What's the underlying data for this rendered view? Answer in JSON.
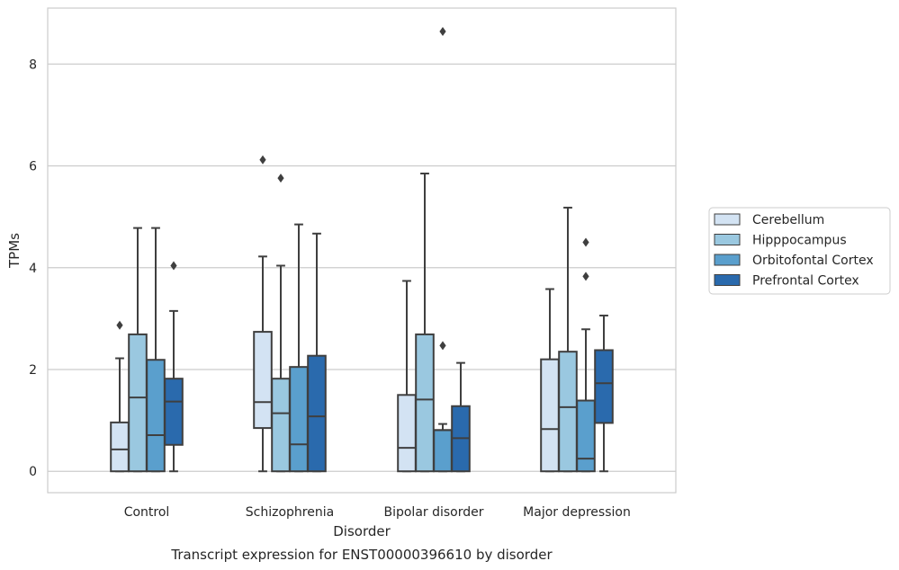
{
  "chart_data": {
    "type": "box",
    "title": "Transcript expression for ENST00000396610 by disorder",
    "xlabel": "Disorder",
    "ylabel": "TPMs",
    "ylim": [
      -0.42,
      9.1
    ],
    "yticks": [
      0,
      2,
      4,
      6,
      8
    ],
    "grid": "horizontal",
    "legend_position": "right",
    "categories": [
      "Control",
      "Schizophrenia",
      "Bipolar disorder",
      "Major depression"
    ],
    "series": [
      {
        "name": "Cerebellum",
        "color": "#d3e3f3",
        "boxes": [
          {
            "whislo": 0,
            "q1": 0,
            "med": 0.43,
            "q3": 0.96,
            "whishi": 2.22,
            "fliers": [
              2.87
            ]
          },
          {
            "whislo": 0,
            "q1": 0.85,
            "med": 1.36,
            "q3": 2.74,
            "whishi": 4.22,
            "fliers": [
              6.12
            ]
          },
          {
            "whislo": 0,
            "q1": 0,
            "med": 0.46,
            "q3": 1.5,
            "whishi": 3.74,
            "fliers": []
          },
          {
            "whislo": 0,
            "q1": 0,
            "med": 0.83,
            "q3": 2.2,
            "whishi": 3.58,
            "fliers": []
          }
        ]
      },
      {
        "name": "Hipppocampus",
        "color": "#9ac8e0",
        "boxes": [
          {
            "whislo": 0,
            "q1": 0,
            "med": 1.45,
            "q3": 2.69,
            "whishi": 4.78,
            "fliers": []
          },
          {
            "whislo": 0,
            "q1": 0,
            "med": 1.14,
            "q3": 1.82,
            "whishi": 4.04,
            "fliers": [
              5.76
            ]
          },
          {
            "whislo": 0,
            "q1": 0,
            "med": 1.41,
            "q3": 2.69,
            "whishi": 5.85,
            "fliers": []
          },
          {
            "whislo": 0,
            "q1": 0,
            "med": 1.26,
            "q3": 2.35,
            "whishi": 5.18,
            "fliers": []
          }
        ]
      },
      {
        "name": "Orbitofontal Cortex",
        "color": "#5a9fcd",
        "boxes": [
          {
            "whislo": 0,
            "q1": 0,
            "med": 0.71,
            "q3": 2.19,
            "whishi": 4.78,
            "fliers": []
          },
          {
            "whislo": 0,
            "q1": 0,
            "med": 0.53,
            "q3": 2.05,
            "whishi": 4.85,
            "fliers": []
          },
          {
            "whislo": 0,
            "q1": 0,
            "med": 0.81,
            "q3": 0.81,
            "whishi": 0.93,
            "fliers": [
              2.47,
              8.64
            ]
          },
          {
            "whislo": 0,
            "q1": 0,
            "med": 0.25,
            "q3": 1.39,
            "whishi": 2.79,
            "fliers": [
              3.83,
              4.5
            ]
          }
        ]
      },
      {
        "name": "Prefrontal Cortex",
        "color": "#2a6aad",
        "boxes": [
          {
            "whislo": 0,
            "q1": 0.52,
            "med": 1.37,
            "q3": 1.82,
            "whishi": 3.15,
            "fliers": [
              4.04
            ]
          },
          {
            "whislo": 0,
            "q1": 0,
            "med": 1.08,
            "q3": 2.27,
            "whishi": 4.67,
            "fliers": []
          },
          {
            "whislo": 0,
            "q1": 0,
            "med": 0.65,
            "q3": 1.28,
            "whishi": 2.13,
            "fliers": []
          },
          {
            "whislo": 0,
            "q1": 0.95,
            "med": 1.73,
            "q3": 2.38,
            "whishi": 3.06,
            "fliers": []
          }
        ]
      }
    ]
  }
}
